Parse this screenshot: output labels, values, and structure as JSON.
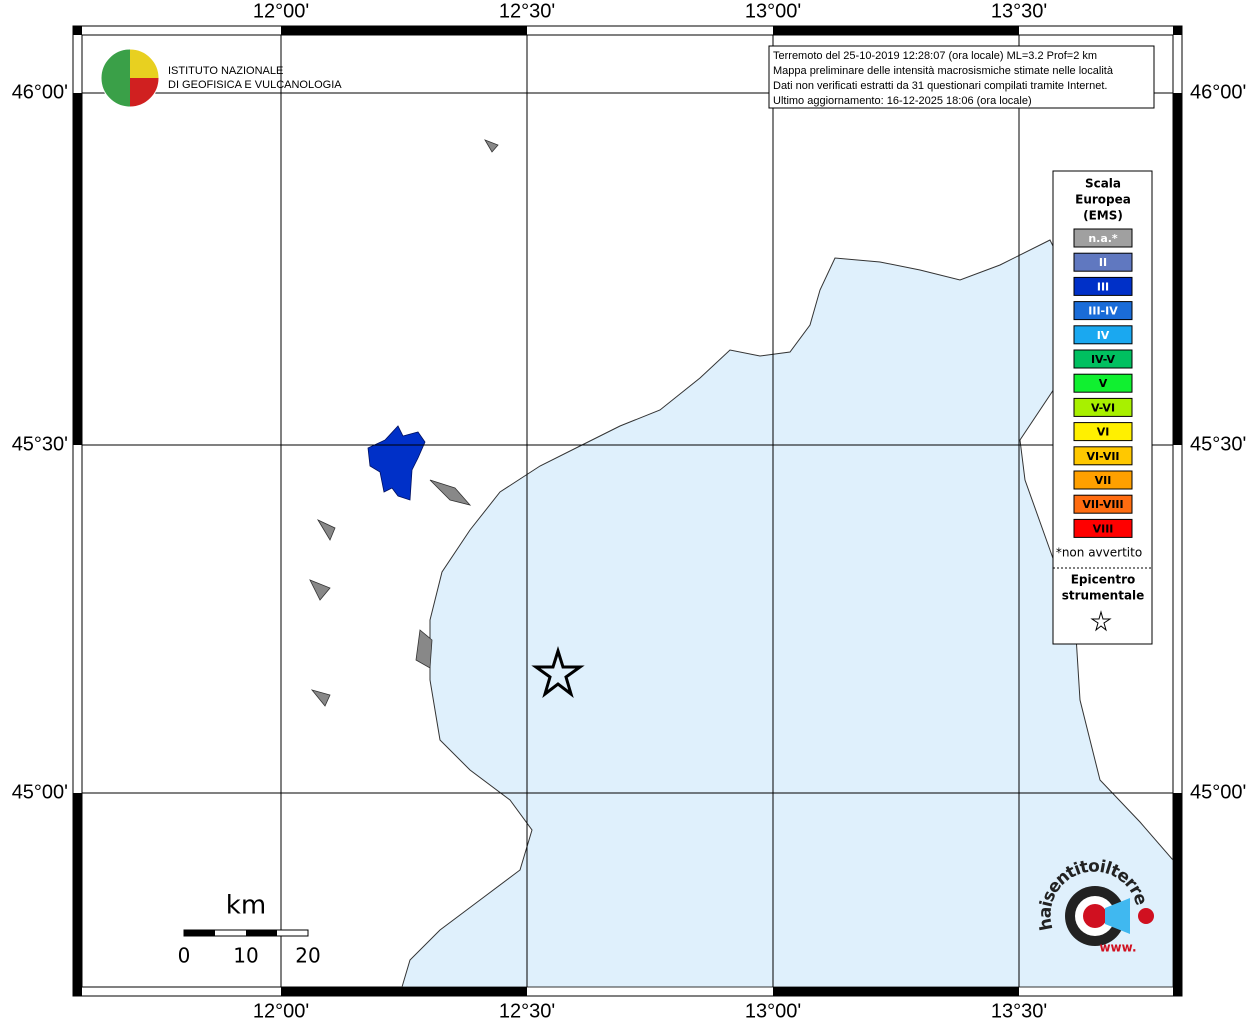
{
  "header": {
    "institute": [
      "ISTITUTO NAZIONALE",
      "DI GEOFISICA E VULCANOLOGIA"
    ]
  },
  "info": [
    "Terremoto del 25-10-2019 12:28:07 (ora locale) ML=3.2 Prof=2 km",
    "Mappa preliminare delle intensità macrosismiche stimate nelle località",
    "Dati non verificati estratti da 31 questionari compilati tramite Internet.",
    "Ultimo aggiornamento: 16-12-2025 18:06 (ora locale)"
  ],
  "axes": {
    "lon": [
      "12°00'",
      "12°30'",
      "13°00'",
      "13°30'"
    ],
    "lat": [
      "46°00'",
      "45°30'",
      "45°00'"
    ]
  },
  "legend": {
    "title": [
      "Scala",
      "Europea",
      "(EMS)"
    ],
    "items": [
      {
        "label": "n.a.*",
        "color": "#a0a0a0",
        "text_color": "#ffffff"
      },
      {
        "label": "II",
        "color": "#6078c0",
        "text_color": "#ffffff"
      },
      {
        "label": "III",
        "color": "#0030c8",
        "text_color": "#ffffff"
      },
      {
        "label": "III-IV",
        "color": "#1a6cd8",
        "text_color": "#ffffff"
      },
      {
        "label": "IV",
        "color": "#1aa8f0",
        "text_color": "#ffffff"
      },
      {
        "label": "IV-V",
        "color": "#00c060",
        "text_color": "#000000"
      },
      {
        "label": "V",
        "color": "#10f030",
        "text_color": "#000000"
      },
      {
        "label": "V-VI",
        "color": "#a8f000",
        "text_color": "#000000"
      },
      {
        "label": "VI",
        "color": "#fff000",
        "text_color": "#000000"
      },
      {
        "label": "VI-VII",
        "color": "#ffc800",
        "text_color": "#000000"
      },
      {
        "label": "VII",
        "color": "#ffa000",
        "text_color": "#000000"
      },
      {
        "label": "VII-VIII",
        "color": "#ff6c10",
        "text_color": "#000000"
      },
      {
        "label": "VIII",
        "color": "#ff0000",
        "text_color": "#000000"
      }
    ],
    "note": "*non avvertito",
    "epicenter": [
      "Epicentro",
      "strumentale"
    ]
  },
  "scale": {
    "unit": "km",
    "labels": [
      "0",
      "10",
      "20"
    ]
  },
  "logo": {
    "text": "haisentitoilterremoto.it",
    "www": "www."
  }
}
